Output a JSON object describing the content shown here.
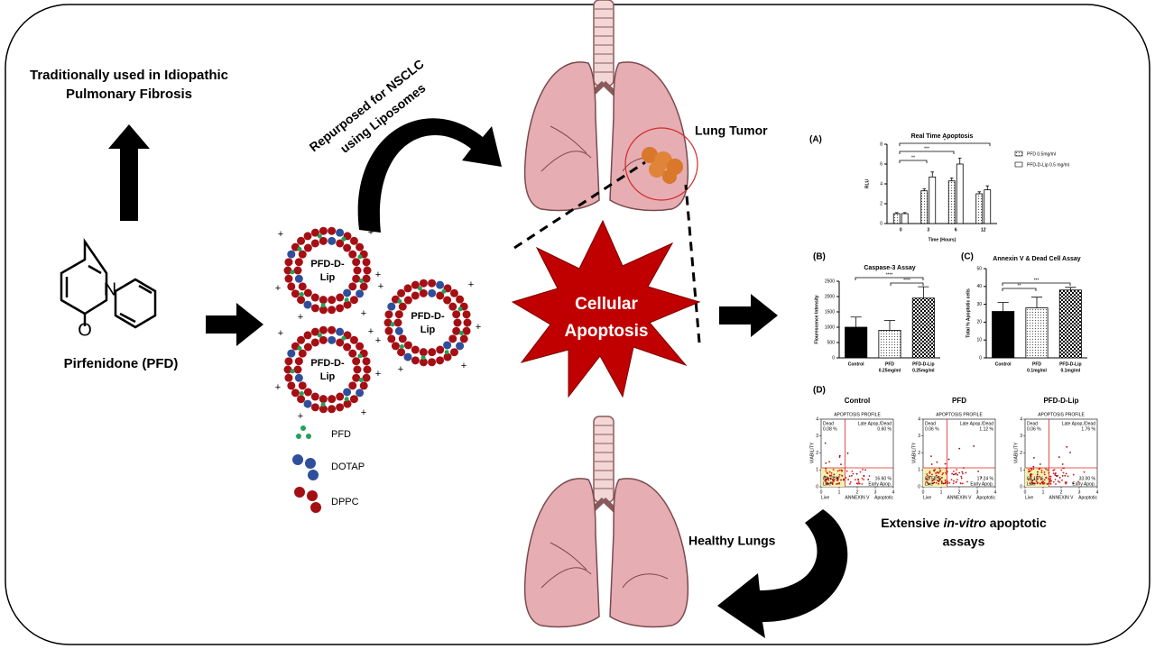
{
  "left_note": [
    "Traditionally  used in Idiopathic",
    "Pulmonary  Fibrosis"
  ],
  "drug": {
    "name": "Pirfenidone (PFD)",
    "atoms": [
      "N",
      "O"
    ]
  },
  "repurpose": [
    "Repurposed for NSCLC",
    "using Liposomes"
  ],
  "liposome": {
    "label": [
      "PFD-D-",
      "Lip"
    ],
    "charge": "+"
  },
  "components": [
    "PFD",
    "DOTAP",
    "DPPC"
  ],
  "center": [
    "Cellular",
    "Apoptosis"
  ],
  "lung_tumor": "Lung Tumor",
  "healthy_lungs": "Healthy Lungs",
  "caption": [
    "Extensive ",
    "in-vitro",
    " apoptotic",
    "assays"
  ],
  "assays": {
    "A": {
      "label": "(A)",
      "title": "Real Time Apoptosis",
      "ylabel": "RLU",
      "xlabel": "Time (Hours)",
      "categories": [
        "0",
        "3",
        "6",
        "12"
      ],
      "ylim": [
        0,
        8
      ],
      "yticks": [
        0,
        2,
        4,
        6,
        8
      ],
      "series": [
        {
          "name": "PFD 0.5mg/ml",
          "values": [
            1,
            3.3,
            4.3,
            3
          ],
          "errors": [
            0.1,
            0.2,
            0.3,
            0.2
          ]
        },
        {
          "name": "PFD-D-Lip 0.5 mg/ml",
          "values": [
            1,
            4.7,
            6,
            3.4
          ],
          "errors": [
            0.1,
            0.5,
            0.6,
            0.4
          ]
        }
      ],
      "significance": [
        "**",
        "***",
        "*"
      ]
    },
    "B": {
      "label": "(B)",
      "title": "Caspase-3 Assay",
      "ylabel": "Flourescence Intensity",
      "categories": [
        [
          "Control"
        ],
        [
          "PFD",
          "0.25mg/ml"
        ],
        [
          "PFD-D-Lip",
          "0.25mg/ml"
        ]
      ],
      "ylim": [
        0,
        2500
      ],
      "yticks": [
        0,
        500,
        1000,
        1500,
        2000,
        2500
      ],
      "values": [
        1000,
        900,
        1950
      ],
      "errors": [
        330,
        320,
        370
      ],
      "significance": [
        "****",
        "****"
      ]
    },
    "C": {
      "label": "(C)",
      "title": "Annexin V & Dead Cell Assay",
      "ylabel": "Total % Apoptotic cells",
      "categories": [
        [
          "Control"
        ],
        [
          "PFD",
          "0.1mg/ml"
        ],
        [
          "PFD-D-Lip",
          "0.1mg/ml"
        ]
      ],
      "ylim": [
        0,
        50
      ],
      "yticks": [
        0,
        10,
        20,
        30,
        40,
        50
      ],
      "values": [
        26,
        28,
        38
      ],
      "errors": [
        5,
        6,
        1.5
      ],
      "significance": [
        "**",
        "***"
      ]
    },
    "D": {
      "label": "(D)",
      "header": "APOPTOSIS PROFILE",
      "xlabel": "ANNEXIN V",
      "ylabel": "VIABILITY",
      "xticks": [
        0,
        1,
        2,
        3,
        4
      ],
      "yticks": [
        0,
        1,
        2,
        3,
        4
      ],
      "bottom_labels": [
        "Live",
        "Apoptotic"
      ],
      "quadrant_labels": {
        "dead": "Dead",
        "late": "Late Apop./Dead",
        "live": "Live",
        "early": "Early Apop."
      },
      "plots": [
        {
          "title": "Control",
          "dead": "0.08 %",
          "late": "0.60 %",
          "live": "82.72 %",
          "early": "16.60 %"
        },
        {
          "title": "PFD",
          "dead": "0.06 %",
          "late": "1.12 %",
          "live": "81.58 %",
          "early": "17.24 %"
        },
        {
          "title": "PFD-D-Lip",
          "dead": "0.06 %",
          "late": "1.76 %",
          "live": "65.18 %",
          "early": "33.00 %"
        }
      ]
    }
  }
}
